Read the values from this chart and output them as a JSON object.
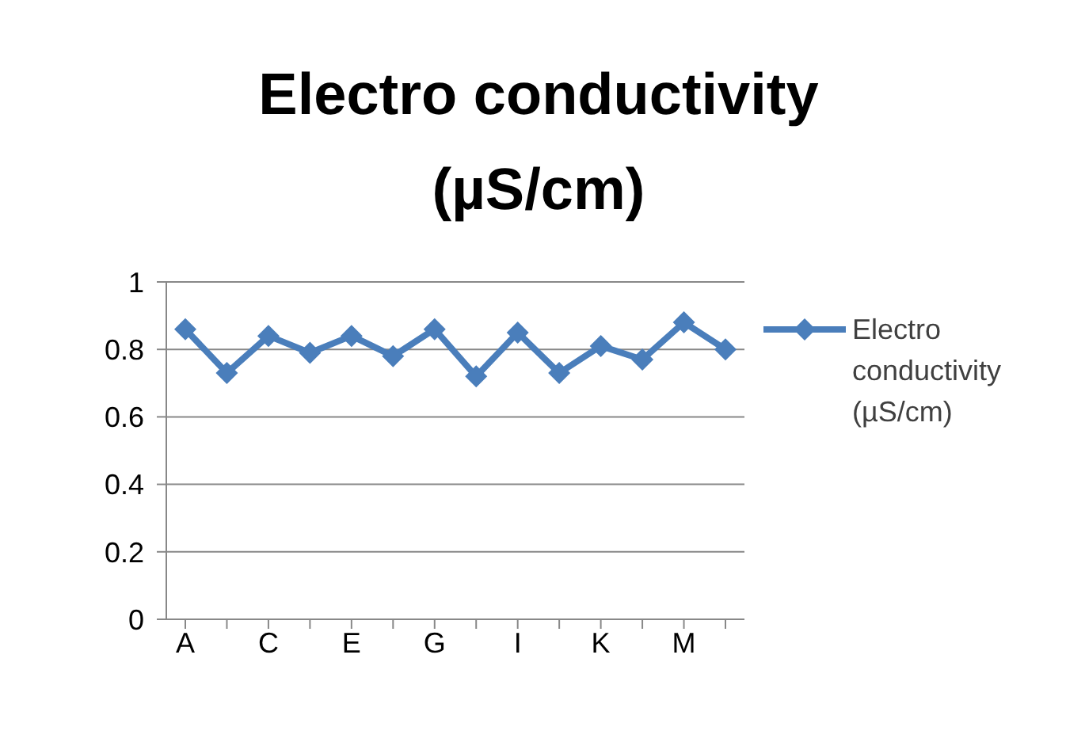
{
  "chart_data": {
    "type": "line",
    "title": "Electro conductivity (µS/cm)",
    "categories": [
      "A",
      null,
      "C",
      null,
      "E",
      null,
      "G",
      null,
      "I",
      null,
      "K",
      null,
      "M",
      null
    ],
    "series": [
      {
        "name": "Electro conductivity (µS/cm)",
        "color": "#4a7ebb",
        "values": [
          0.86,
          0.73,
          0.84,
          0.79,
          0.84,
          0.78,
          0.86,
          0.72,
          0.85,
          0.73,
          0.81,
          0.77,
          0.88,
          0.8
        ]
      }
    ],
    "ylim": [
      0,
      1
    ],
    "yticks": [
      0,
      0.2,
      0.4,
      0.6,
      0.8,
      1
    ],
    "grid": "y",
    "legend": "right",
    "marker": "diamond",
    "line_style": "solid"
  }
}
